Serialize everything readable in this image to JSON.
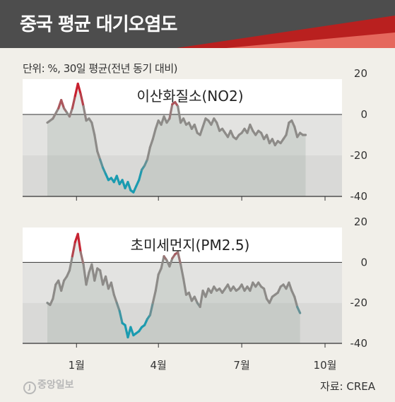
{
  "header": {
    "title": "중국 평균 대기오염도",
    "unit": "단위: %, 30일 평균(전년 동기 대비)"
  },
  "footer": {
    "logo": "중앙일보",
    "logo_mark": "J",
    "source": "자료: CREA"
  },
  "colors": {
    "high": "#c8202f",
    "mid": "#8d8b88",
    "low": "#1a9bb0",
    "banner_dark": "#4d4d4d",
    "banner_red": "#b9201f"
  },
  "chart_data": [
    {
      "type": "line",
      "title": "이산화질소(NO2)",
      "ylim": [
        -40,
        20
      ],
      "yticks": [
        "20",
        "0",
        "-20",
        "-40"
      ],
      "xticks": [
        "1월",
        "4월",
        "7월",
        "10월"
      ],
      "x_range": [
        0,
        100
      ],
      "x_tick_positions": [
        10.5,
        40,
        70,
        100
      ],
      "shading": [
        -20,
        0
      ],
      "points": [
        [
          0,
          -4
        ],
        [
          2,
          -2
        ],
        [
          4,
          3
        ],
        [
          5,
          7
        ],
        [
          6,
          3
        ],
        [
          7,
          1
        ],
        [
          8,
          -1
        ],
        [
          9,
          3
        ],
        [
          10,
          9
        ],
        [
          11,
          15
        ],
        [
          12,
          10
        ],
        [
          13,
          4
        ],
        [
          14,
          -3
        ],
        [
          15,
          -2
        ],
        [
          16,
          -4
        ],
        [
          17,
          -10
        ],
        [
          18,
          -18
        ],
        [
          19,
          -22
        ],
        [
          20,
          -26
        ],
        [
          21,
          -29
        ],
        [
          22,
          -32
        ],
        [
          23,
          -31
        ],
        [
          24,
          -33
        ],
        [
          25,
          -30
        ],
        [
          26,
          -34
        ],
        [
          27,
          -32
        ],
        [
          28,
          -36
        ],
        [
          29,
          -33
        ],
        [
          30,
          -37
        ],
        [
          31,
          -38
        ],
        [
          32,
          -35
        ],
        [
          33,
          -32
        ],
        [
          34,
          -27
        ],
        [
          35,
          -25
        ],
        [
          36,
          -22
        ],
        [
          37,
          -16
        ],
        [
          38,
          -12
        ],
        [
          39,
          -7
        ],
        [
          40,
          -3
        ],
        [
          41,
          -5
        ],
        [
          42,
          -1
        ],
        [
          43,
          -4
        ],
        [
          44,
          -2
        ],
        [
          45,
          5
        ],
        [
          46,
          6
        ],
        [
          47,
          4
        ],
        [
          48,
          -4
        ],
        [
          49,
          -2
        ],
        [
          50,
          -5
        ],
        [
          51,
          -4
        ],
        [
          52,
          -7
        ],
        [
          53,
          -5
        ],
        [
          54,
          -9
        ],
        [
          55,
          -10
        ],
        [
          56,
          -6
        ],
        [
          57,
          -2
        ],
        [
          58,
          -3
        ],
        [
          59,
          -5
        ],
        [
          60,
          -2
        ],
        [
          61,
          -4
        ],
        [
          62,
          -8
        ],
        [
          63,
          -7
        ],
        [
          64,
          -9
        ],
        [
          65,
          -11
        ],
        [
          66,
          -8
        ],
        [
          67,
          -11
        ],
        [
          68,
          -12
        ],
        [
          69,
          -10
        ],
        [
          70,
          -9
        ],
        [
          71,
          -7
        ],
        [
          72,
          -9
        ],
        [
          73,
          -5
        ],
        [
          74,
          -8
        ],
        [
          75,
          -10
        ],
        [
          76,
          -8
        ],
        [
          77,
          -9
        ],
        [
          78,
          -12
        ],
        [
          79,
          -10
        ],
        [
          80,
          -14
        ],
        [
          81,
          -12
        ],
        [
          82,
          -15
        ],
        [
          83,
          -13
        ],
        [
          84,
          -14
        ],
        [
          85,
          -12
        ],
        [
          86,
          -10
        ],
        [
          87,
          -4
        ],
        [
          88,
          -3
        ],
        [
          89,
          -6
        ],
        [
          90,
          -11
        ],
        [
          91,
          -9
        ],
        [
          92,
          -10
        ],
        [
          93,
          -10
        ]
      ]
    },
    {
      "type": "line",
      "title": "초미세먼지(PM2.5)",
      "ylim": [
        -40,
        20
      ],
      "yticks": [
        "20",
        "0",
        "-20",
        "-40"
      ],
      "xticks": [
        "1월",
        "4월",
        "7월",
        "10월"
      ],
      "x_range": [
        0,
        100
      ],
      "x_tick_positions": [
        10.5,
        40,
        70,
        100
      ],
      "shading": [
        -20,
        0
      ],
      "points": [
        [
          0,
          -20
        ],
        [
          1,
          -21
        ],
        [
          2,
          -18
        ],
        [
          3,
          -11
        ],
        [
          4,
          -9
        ],
        [
          5,
          -14
        ],
        [
          6,
          -9
        ],
        [
          7,
          -7
        ],
        [
          8,
          -4
        ],
        [
          9,
          3
        ],
        [
          10,
          10
        ],
        [
          11,
          14
        ],
        [
          12,
          5
        ],
        [
          13,
          -1
        ],
        [
          14,
          -11
        ],
        [
          15,
          -5
        ],
        [
          16,
          -1
        ],
        [
          17,
          -9
        ],
        [
          18,
          -3
        ],
        [
          19,
          -4
        ],
        [
          20,
          -11
        ],
        [
          21,
          -7
        ],
        [
          22,
          -13
        ],
        [
          23,
          -10
        ],
        [
          24,
          -16
        ],
        [
          25,
          -20
        ],
        [
          26,
          -24
        ],
        [
          27,
          -30
        ],
        [
          28,
          -31
        ],
        [
          29,
          -37
        ],
        [
          30,
          -32
        ],
        [
          31,
          -36
        ],
        [
          32,
          -35
        ],
        [
          33,
          -34
        ],
        [
          34,
          -32
        ],
        [
          35,
          -31
        ],
        [
          36,
          -28
        ],
        [
          37,
          -26
        ],
        [
          38,
          -20
        ],
        [
          39,
          -14
        ],
        [
          40,
          -6
        ],
        [
          41,
          -3
        ],
        [
          42,
          3
        ],
        [
          43,
          1
        ],
        [
          44,
          -2
        ],
        [
          45,
          2
        ],
        [
          46,
          4
        ],
        [
          47,
          5
        ],
        [
          48,
          -1
        ],
        [
          49,
          -8
        ],
        [
          50,
          -16
        ],
        [
          51,
          -15
        ],
        [
          52,
          -19
        ],
        [
          53,
          -17
        ],
        [
          54,
          -20
        ],
        [
          55,
          -22
        ],
        [
          56,
          -14
        ],
        [
          57,
          -17
        ],
        [
          58,
          -13
        ],
        [
          59,
          -15
        ],
        [
          60,
          -12
        ],
        [
          61,
          -14
        ],
        [
          62,
          -13
        ],
        [
          63,
          -15
        ],
        [
          64,
          -13
        ],
        [
          65,
          -11
        ],
        [
          66,
          -14
        ],
        [
          67,
          -12
        ],
        [
          68,
          -14
        ],
        [
          69,
          -13
        ],
        [
          70,
          -11
        ],
        [
          71,
          -14
        ],
        [
          72,
          -12
        ],
        [
          73,
          -14
        ],
        [
          74,
          -10
        ],
        [
          75,
          -12
        ],
        [
          76,
          -10
        ],
        [
          77,
          -12
        ],
        [
          78,
          -13
        ],
        [
          79,
          -18
        ],
        [
          80,
          -20
        ],
        [
          81,
          -17
        ],
        [
          82,
          -16
        ],
        [
          83,
          -15
        ],
        [
          84,
          -12
        ],
        [
          85,
          -11
        ],
        [
          86,
          -13
        ],
        [
          87,
          -10
        ],
        [
          88,
          -14
        ],
        [
          89,
          -17
        ],
        [
          90,
          -22
        ],
        [
          91,
          -25
        ]
      ]
    }
  ]
}
